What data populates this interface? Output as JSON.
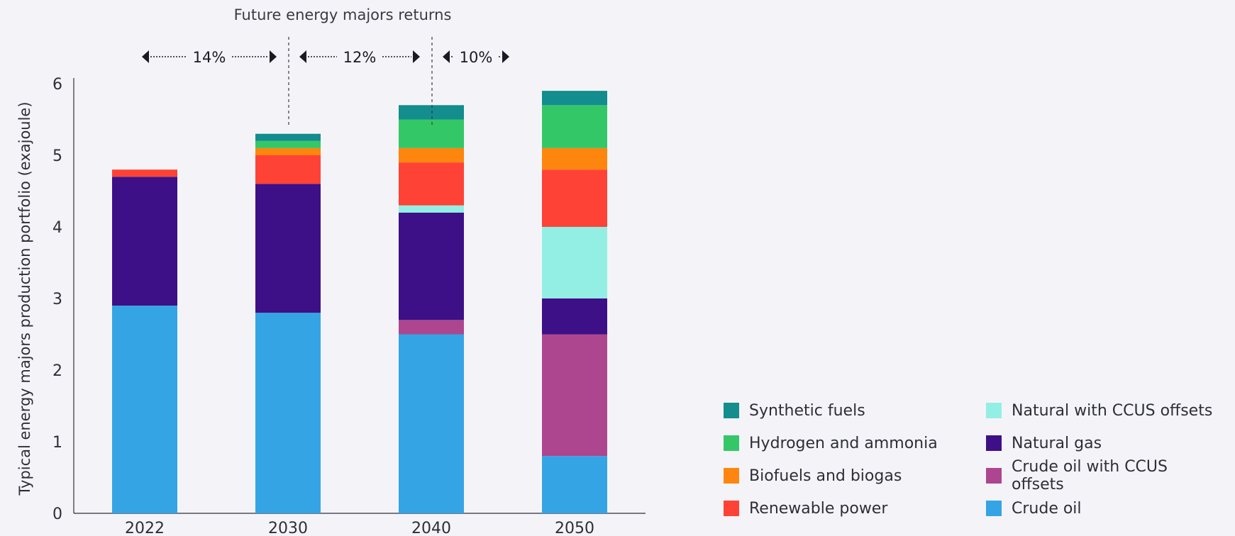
{
  "chart_data": {
    "type": "bar",
    "stacked": true,
    "categories": [
      "2022",
      "2030",
      "2040",
      "2050"
    ],
    "series": [
      {
        "name": "Crude oil",
        "color": "#35a4e5",
        "values": [
          2.9,
          2.8,
          2.5,
          0.8
        ]
      },
      {
        "name": "Crude oil with CCUS offsets",
        "color": "#ad468f",
        "values": [
          0,
          0,
          0.2,
          1.7
        ]
      },
      {
        "name": "Natural gas",
        "color": "#3d1087",
        "values": [
          1.8,
          1.8,
          1.5,
          0.5
        ]
      },
      {
        "name": "Natural with CCUS offsets",
        "color": "#93efe4",
        "values": [
          0,
          0,
          0.1,
          1.0
        ]
      },
      {
        "name": "Renewable power",
        "color": "#ff4236",
        "values": [
          0.1,
          0.4,
          0.6,
          0.8
        ]
      },
      {
        "name": "Biofuels and biogas",
        "color": "#ff860e",
        "values": [
          0,
          0.1,
          0.2,
          0.3
        ]
      },
      {
        "name": "Hydrogen and ammonia",
        "color": "#34c768",
        "values": [
          0,
          0.1,
          0.4,
          0.6
        ]
      },
      {
        "name": "Synthetic fuels",
        "color": "#138d8d",
        "values": [
          0,
          0.1,
          0.2,
          0.2
        ]
      }
    ],
    "title": "",
    "xlabel": "",
    "ylabel": "Typical energy majors production portfolio (exajoule)",
    "ylim": [
      0,
      6
    ],
    "yticks": [
      "0",
      "1",
      "2",
      "3",
      "4",
      "5",
      "6"
    ],
    "grid": false,
    "legend_position": "bottom-right",
    "annotation_title": "Future energy majors returns",
    "returns": [
      {
        "label": "14%",
        "from": "2022",
        "to": "2030"
      },
      {
        "label": "12%",
        "from": "2030",
        "to": "2040"
      },
      {
        "label": "10%",
        "from": "2040",
        "to": "2050"
      }
    ]
  },
  "legend": {
    "order": [
      "Synthetic fuels",
      "Hydrogen and ammonia",
      "Biofuels and biogas",
      "Renewable power",
      "Natural with CCUS offsets",
      "Natural gas",
      "Crude oil with CCUS offsets",
      "Crude oil"
    ]
  }
}
